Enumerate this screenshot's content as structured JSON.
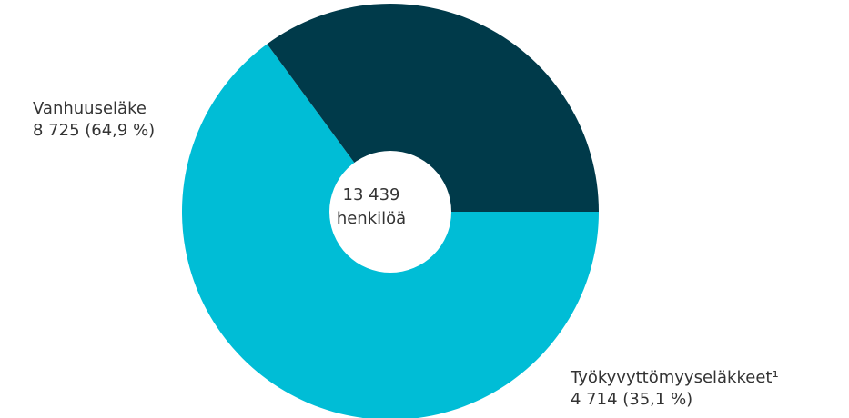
{
  "chart_data": {
    "type": "pie",
    "title": "",
    "total": {
      "value": "13 439",
      "unit": "henkilöä"
    },
    "slices": [
      {
        "name": "Vanhuuseläke",
        "value": 8725,
        "value_label": "8 725 (64,9 %)",
        "percent": 64.9,
        "color": "#00BDD6"
      },
      {
        "name": "Työkyvyttömyyseläkkeet¹",
        "value": 4714,
        "value_label": "4 714 (35,1 %)",
        "percent": 35.1,
        "color": "#003A4A"
      }
    ],
    "start_angle_deg": 90,
    "direction": "clockwise",
    "donut": true,
    "legend": "none"
  }
}
